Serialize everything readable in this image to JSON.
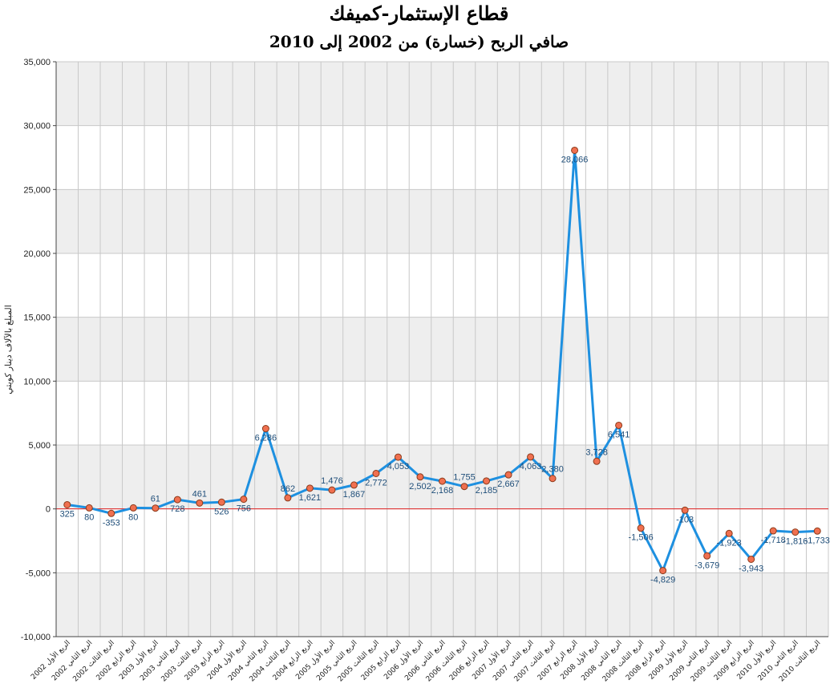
{
  "chart_data": {
    "type": "line",
    "title": "قطاع الإستثمار-كميفك",
    "subtitle": "صافي الربح (خسارة) من 2002 إلى 2010",
    "ylabel": "المبلغ بالآلاف دينار كويتي",
    "xlabel": "",
    "ylim": [
      -10000,
      35000
    ],
    "yticks": [
      "-10,000",
      "-5,000",
      "0",
      "5,000",
      "10,000",
      "15,000",
      "20,000",
      "25,000",
      "30,000",
      "35,000"
    ],
    "grid": true,
    "legend": "none",
    "categories": [
      "الربع الأول 2002",
      "الربع الثاني 2002",
      "الربع الثالث 2002",
      "الربع الرابع 2002",
      "الربع الأول 2003",
      "الربع الثاني 2003",
      "الربع الثالث 2003",
      "الربع الرابع 2003",
      "الربع الأول 2004",
      "الربع الثاني 2004",
      "الربع الثالث 2004",
      "الربع الرابع 2004",
      "الربع الأول 2005",
      "الربع الثاني 2005",
      "الربع الثالث 2005",
      "الربع الرابع 2005",
      "الربع الأول 2006",
      "الربع الثاني 2006",
      "الربع الثالث 2006",
      "الربع الرابع 2006",
      "الربع الأول 2007",
      "الربع الثاني 2007",
      "الربع الثالث 2007",
      "الربع الرابع 2007",
      "الربع الأول 2008",
      "الربع الثاني 2008",
      "الربع الثالث 2008",
      "الربع الرابع 2008",
      "الربع الأول 2009",
      "الربع الثاني 2009",
      "الربع الثالث 2009",
      "الربع الرابع 2009",
      "الربع الأول 2010",
      "الربع الثاني 2010",
      "الربع الثالث 2010"
    ],
    "series": [
      {
        "values": [
          325,
          80,
          -353,
          80,
          61,
          728,
          461,
          526,
          756,
          6286,
          862,
          1621,
          1476,
          1867,
          2772,
          4053,
          2502,
          2168,
          1755,
          2185,
          2667,
          4063,
          2380,
          28066,
          3728,
          6541,
          -1506,
          -4829,
          -103,
          -3679,
          -1923,
          -3943,
          -1718,
          -1816,
          -1733
        ],
        "labels": [
          "325",
          "80",
          "-353",
          "80",
          "61",
          "728",
          "461",
          "526",
          "756",
          "6,286",
          "862",
          "1,621",
          "1,476",
          "1,867",
          "2,772",
          "4,053",
          "2,502",
          "2,168",
          "1,755",
          "2,185",
          "2,667",
          "4,063",
          "2,380",
          "28,066",
          "3,728",
          "6,541",
          "-1,506",
          "-4,829",
          "-103",
          "-3,679",
          "-1,923",
          "-3,943",
          "-1,718",
          "-1,816",
          "-1,733"
        ]
      }
    ],
    "colors": {
      "line": "#1e90e0",
      "marker_fill": "#f07050",
      "marker_stroke": "#8b3a1a",
      "zero_line": "#e02020",
      "band": "#eeeeee",
      "grid": "#c8c8c8",
      "label": "#1f4e79"
    }
  }
}
